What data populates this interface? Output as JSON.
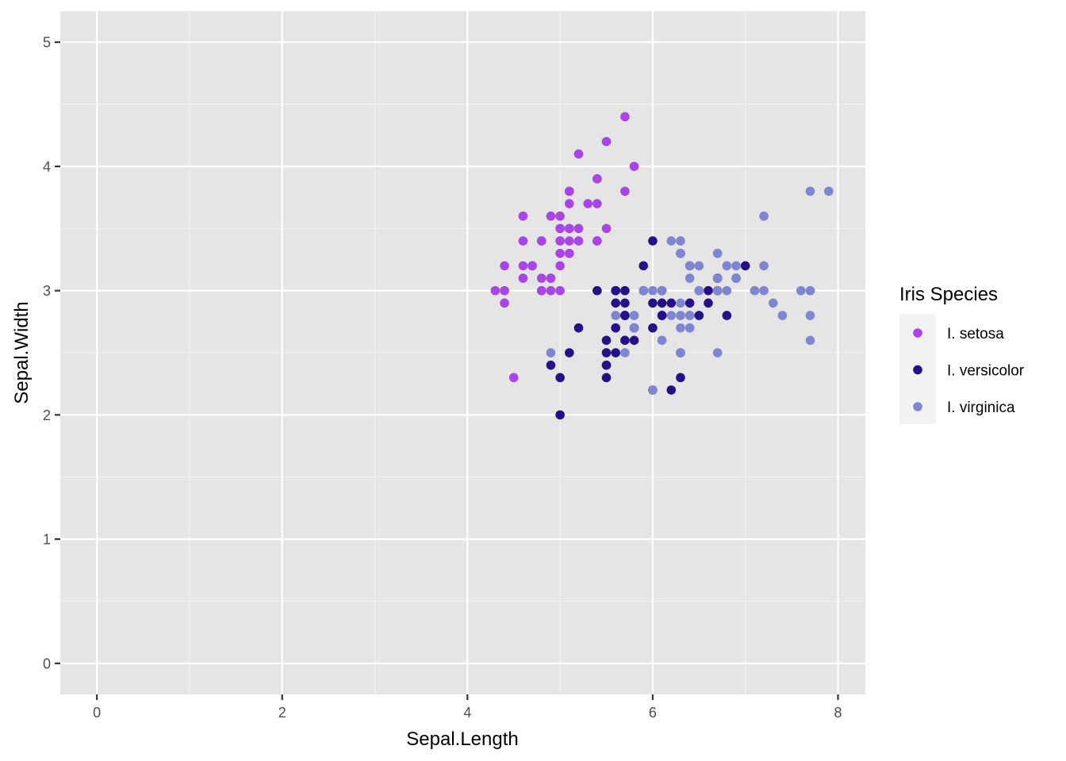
{
  "chart_data": {
    "type": "scatter",
    "xlabel": "Sepal.Length",
    "ylabel": "Sepal.Width",
    "xlim": [
      -0.395,
      8.295
    ],
    "ylim": [
      -0.25,
      5.25
    ],
    "x_ticks": [
      0,
      2,
      4,
      6,
      8
    ],
    "y_ticks": [
      0,
      1,
      2,
      3,
      4,
      5
    ],
    "grid": true,
    "legend": {
      "title": "Iris Species",
      "position": "right"
    },
    "series": [
      {
        "name": "I. setosa",
        "color": "#a945e8",
        "points": [
          [
            5.1,
            3.5
          ],
          [
            4.9,
            3.0
          ],
          [
            4.7,
            3.2
          ],
          [
            4.6,
            3.1
          ],
          [
            5.0,
            3.6
          ],
          [
            5.4,
            3.9
          ],
          [
            4.6,
            3.4
          ],
          [
            5.0,
            3.4
          ],
          [
            4.4,
            2.9
          ],
          [
            4.9,
            3.1
          ],
          [
            5.4,
            3.7
          ],
          [
            4.8,
            3.4
          ],
          [
            4.8,
            3.0
          ],
          [
            4.3,
            3.0
          ],
          [
            5.8,
            4.0
          ],
          [
            5.7,
            4.4
          ],
          [
            5.4,
            3.9
          ],
          [
            5.1,
            3.5
          ],
          [
            5.7,
            3.8
          ],
          [
            5.1,
            3.8
          ],
          [
            5.4,
            3.4
          ],
          [
            5.1,
            3.7
          ],
          [
            4.6,
            3.6
          ],
          [
            5.1,
            3.3
          ],
          [
            4.8,
            3.4
          ],
          [
            5.0,
            3.0
          ],
          [
            5.0,
            3.4
          ],
          [
            5.2,
            3.5
          ],
          [
            5.2,
            3.4
          ],
          [
            4.7,
            3.2
          ],
          [
            4.8,
            3.1
          ],
          [
            5.4,
            3.4
          ],
          [
            5.2,
            4.1
          ],
          [
            5.5,
            4.2
          ],
          [
            4.9,
            3.1
          ],
          [
            5.0,
            3.2
          ],
          [
            5.5,
            3.5
          ],
          [
            4.9,
            3.6
          ],
          [
            4.4,
            3.0
          ],
          [
            5.1,
            3.4
          ],
          [
            5.0,
            3.5
          ],
          [
            4.5,
            2.3
          ],
          [
            4.4,
            3.2
          ],
          [
            5.0,
            3.5
          ],
          [
            5.1,
            3.8
          ],
          [
            4.8,
            3.0
          ],
          [
            5.1,
            3.8
          ],
          [
            4.6,
            3.2
          ],
          [
            5.3,
            3.7
          ],
          [
            5.0,
            3.3
          ]
        ]
      },
      {
        "name": "I. versicolor",
        "color": "#26108a",
        "points": [
          [
            7.0,
            3.2
          ],
          [
            6.4,
            3.2
          ],
          [
            6.9,
            3.1
          ],
          [
            5.5,
            2.3
          ],
          [
            6.5,
            2.8
          ],
          [
            5.7,
            2.8
          ],
          [
            6.3,
            3.3
          ],
          [
            4.9,
            2.4
          ],
          [
            6.6,
            2.9
          ],
          [
            5.2,
            2.7
          ],
          [
            5.0,
            2.0
          ],
          [
            5.9,
            3.0
          ],
          [
            6.0,
            2.2
          ],
          [
            6.1,
            2.9
          ],
          [
            5.6,
            2.9
          ],
          [
            6.7,
            3.1
          ],
          [
            5.6,
            3.0
          ],
          [
            5.8,
            2.7
          ],
          [
            6.2,
            2.2
          ],
          [
            5.6,
            2.5
          ],
          [
            5.9,
            3.2
          ],
          [
            6.1,
            2.8
          ],
          [
            6.3,
            2.5
          ],
          [
            6.1,
            2.8
          ],
          [
            6.4,
            2.9
          ],
          [
            6.6,
            3.0
          ],
          [
            6.8,
            2.8
          ],
          [
            6.7,
            3.0
          ],
          [
            6.0,
            2.9
          ],
          [
            5.7,
            2.6
          ],
          [
            5.5,
            2.4
          ],
          [
            5.5,
            2.4
          ],
          [
            5.8,
            2.7
          ],
          [
            6.0,
            2.7
          ],
          [
            5.4,
            3.0
          ],
          [
            6.0,
            3.4
          ],
          [
            6.7,
            3.1
          ],
          [
            6.3,
            2.3
          ],
          [
            5.6,
            3.0
          ],
          [
            5.5,
            2.5
          ],
          [
            5.5,
            2.6
          ],
          [
            6.1,
            3.0
          ],
          [
            5.8,
            2.6
          ],
          [
            5.0,
            2.3
          ],
          [
            5.6,
            2.7
          ],
          [
            5.7,
            3.0
          ],
          [
            5.7,
            2.9
          ],
          [
            6.2,
            2.9
          ],
          [
            5.1,
            2.5
          ],
          [
            5.7,
            2.8
          ]
        ]
      },
      {
        "name": "I. virginica",
        "color": "#7f86d1",
        "points": [
          [
            6.3,
            3.3
          ],
          [
            5.8,
            2.7
          ],
          [
            7.1,
            3.0
          ],
          [
            6.3,
            2.9
          ],
          [
            6.5,
            3.0
          ],
          [
            7.6,
            3.0
          ],
          [
            4.9,
            2.5
          ],
          [
            7.3,
            2.9
          ],
          [
            6.7,
            2.5
          ],
          [
            7.2,
            3.6
          ],
          [
            6.5,
            3.2
          ],
          [
            6.4,
            2.7
          ],
          [
            6.8,
            3.0
          ],
          [
            5.7,
            2.5
          ],
          [
            5.8,
            2.8
          ],
          [
            6.4,
            3.2
          ],
          [
            6.5,
            3.0
          ],
          [
            7.7,
            3.8
          ],
          [
            7.7,
            2.6
          ],
          [
            6.0,
            2.2
          ],
          [
            6.9,
            3.2
          ],
          [
            5.6,
            2.8
          ],
          [
            7.7,
            2.8
          ],
          [
            6.3,
            2.7
          ],
          [
            6.7,
            3.3
          ],
          [
            7.2,
            3.2
          ],
          [
            6.2,
            2.8
          ],
          [
            6.1,
            3.0
          ],
          [
            6.4,
            2.8
          ],
          [
            7.2,
            3.0
          ],
          [
            7.4,
            2.8
          ],
          [
            7.9,
            3.8
          ],
          [
            6.4,
            2.8
          ],
          [
            6.3,
            2.8
          ],
          [
            6.1,
            2.6
          ],
          [
            7.7,
            3.0
          ],
          [
            6.3,
            3.4
          ],
          [
            6.4,
            3.1
          ],
          [
            6.0,
            3.0
          ],
          [
            6.9,
            3.1
          ],
          [
            6.7,
            3.1
          ],
          [
            6.9,
            3.1
          ],
          [
            5.8,
            2.7
          ],
          [
            6.8,
            3.2
          ],
          [
            6.7,
            3.3
          ],
          [
            6.7,
            3.0
          ],
          [
            6.3,
            2.5
          ],
          [
            6.5,
            3.0
          ],
          [
            6.2,
            3.4
          ],
          [
            5.9,
            3.0
          ]
        ]
      }
    ]
  }
}
